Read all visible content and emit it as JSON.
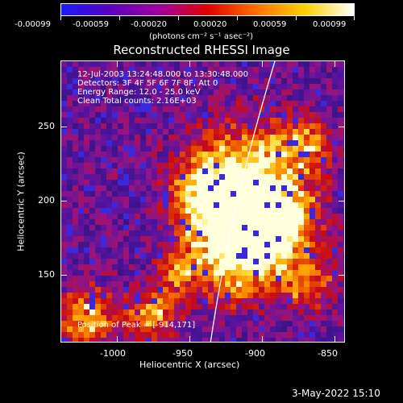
{
  "colorbar": {
    "ticks": [
      "-0.00099",
      "-0.00059",
      "-0.00020",
      "0.00020",
      "0.00059",
      "0.00099"
    ],
    "units": "(photons cm⁻² s⁻¹ asec⁻²)",
    "colors": [
      "#1a1aff",
      "#5a00c0",
      "#a000a0",
      "#e00000",
      "#ff7000",
      "#ffd000",
      "#ffffff"
    ]
  },
  "title": "Reconstructed RHESSI Image",
  "info": {
    "line1": "12-Jul-2003 13:24:48.000 to 13:30:48.000",
    "line2": "Detectors: 3F 4F 5F 6F 7F 8F, Att 0",
    "line3": "Energy Range: 12.0 - 25.0 keV",
    "line4": "Clean    Total counts: 2.16E+03"
  },
  "peak_label": "Position of Peak = [-914,171]",
  "axes": {
    "xlabel": "Heliocentric X (arcsec)",
    "ylabel": "Heliocentric Y (arcsec)",
    "xticks": [
      "-1000",
      "-950",
      "-900",
      "-850"
    ],
    "yticks": [
      "250",
      "200",
      "150"
    ],
    "xlim": [
      -1035,
      -838
    ],
    "ylim": [
      103,
      298
    ]
  },
  "footer_date": "3-May-2022 15:10"
}
